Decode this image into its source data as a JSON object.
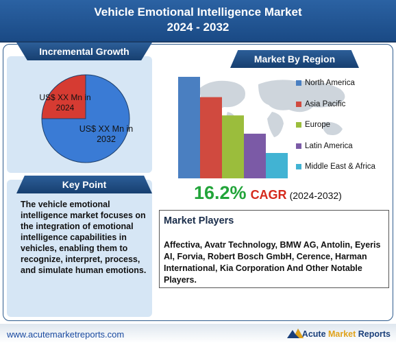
{
  "header": {
    "title_line1": "Vehicle Emotional Intelligence Market",
    "title_line2": "2024 - 2032"
  },
  "incremental": {
    "heading": "Incremental Growth",
    "label_2024": "US$ XX Mn in 2024",
    "label_2032": "US$ XX Mn in 2032"
  },
  "key_point": {
    "heading": "Key Point",
    "text": "The vehicle emotional intelligence market focuses on the integration of emotional intelligence capabilities in vehicles, enabling them to recognize, interpret, process, and simulate human emotions."
  },
  "region": {
    "heading": "Market By Region"
  },
  "cagr": {
    "value": "16.2%",
    "label": "CAGR",
    "period": "(2024-2032)"
  },
  "players": {
    "heading": "Market Players",
    "text": "Affectiva, Avatr Technology, BMW AG, Antolin, Eyeris AI, Forvia, Robert Bosch GmbH, Cerence, Harman International, Kia Corporation And Other Notable Players."
  },
  "footer": {
    "url": "www.acutemarketreports.com",
    "brand_part1": "Acute ",
    "brand_part2": "Market",
    "brand_part3": " Reports"
  },
  "colors": {
    "header": "#1f4f8a",
    "pie_2024": "#d63b32",
    "pie_2032": "#3a7bd5"
  },
  "chart_data": [
    {
      "type": "pie",
      "labels": [
        "US$ XX Mn in 2024",
        "US$ XX Mn in 2032"
      ],
      "values": [
        25,
        75
      ],
      "colors": [
        "#d63b32",
        "#3a7bd5"
      ]
    },
    {
      "type": "bar",
      "categories": [
        "North America",
        "Asia Pacific",
        "Europe",
        "Latin America",
        "Middle East & Africa"
      ],
      "values": [
        100,
        80,
        62,
        44,
        25
      ],
      "colors": [
        "#4a7fc1",
        "#d04a3f",
        "#9bbd3c",
        "#7b5aa6",
        "#41b3d3"
      ],
      "legend": "right"
    }
  ]
}
